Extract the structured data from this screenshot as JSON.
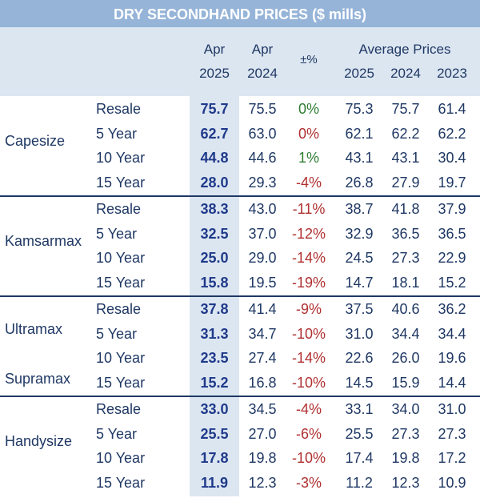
{
  "title": "DRY SECONDHAND PRICES ($ mills)",
  "headers": {
    "apr2025_top": "Apr",
    "apr2025_bottom": "2025",
    "apr2024_top": "Apr",
    "apr2024_bottom": "2024",
    "change": "±%",
    "average": "Average Prices",
    "avg2025": "2025",
    "avg2024": "2024",
    "avg2023": "2023"
  },
  "groups": [
    {
      "name": "Capesize",
      "rows": [
        {
          "label": "Resale",
          "apr2025": "75.7",
          "apr2024": "75.5",
          "change": "0%",
          "trend": "pos",
          "a2025": "75.3",
          "a2024": "75.7",
          "a2023": "61.4"
        },
        {
          "label": "5 Year",
          "apr2025": "62.7",
          "apr2024": "63.0",
          "change": "0%",
          "trend": "neg",
          "a2025": "62.1",
          "a2024": "62.2",
          "a2023": "62.2"
        },
        {
          "label": "10 Year",
          "apr2025": "44.8",
          "apr2024": "44.6",
          "change": "1%",
          "trend": "pos",
          "a2025": "43.1",
          "a2024": "43.1",
          "a2023": "30.4"
        },
        {
          "label": "15 Year",
          "apr2025": "28.0",
          "apr2024": "29.3",
          "change": "-4%",
          "trend": "neg",
          "a2025": "26.8",
          "a2024": "27.9",
          "a2023": "19.7"
        }
      ]
    },
    {
      "name": "Kamsarmax",
      "rows": [
        {
          "label": "Resale",
          "apr2025": "38.3",
          "apr2024": "43.0",
          "change": "-11%",
          "trend": "neg",
          "a2025": "38.7",
          "a2024": "41.8",
          "a2023": "37.9"
        },
        {
          "label": "5 Year",
          "apr2025": "32.5",
          "apr2024": "37.0",
          "change": "-12%",
          "trend": "neg",
          "a2025": "32.9",
          "a2024": "36.5",
          "a2023": "36.5"
        },
        {
          "label": "10 Year",
          "apr2025": "25.0",
          "apr2024": "29.0",
          "change": "-14%",
          "trend": "neg",
          "a2025": "24.5",
          "a2024": "27.3",
          "a2023": "22.9"
        },
        {
          "label": "15 Year",
          "apr2025": "15.8",
          "apr2024": "19.5",
          "change": "-19%",
          "trend": "neg",
          "a2025": "14.7",
          "a2024": "18.1",
          "a2023": "15.2"
        }
      ]
    },
    {
      "name": "Ultramax",
      "name2": "Supramax",
      "rows": [
        {
          "label": "Resale",
          "apr2025": "37.8",
          "apr2024": "41.4",
          "change": "-9%",
          "trend": "neg",
          "a2025": "37.5",
          "a2024": "40.6",
          "a2023": "36.2"
        },
        {
          "label": "5 Year",
          "apr2025": "31.3",
          "apr2024": "34.7",
          "change": "-10%",
          "trend": "neg",
          "a2025": "31.0",
          "a2024": "34.4",
          "a2023": "34.4"
        },
        {
          "label": "10 Year",
          "apr2025": "23.5",
          "apr2024": "27.4",
          "change": "-14%",
          "trend": "neg",
          "a2025": "22.6",
          "a2024": "26.0",
          "a2023": "19.6"
        },
        {
          "label": "15 Year",
          "apr2025": "15.2",
          "apr2024": "16.8",
          "change": "-10%",
          "trend": "neg",
          "a2025": "14.5",
          "a2024": "15.9",
          "a2023": "14.4"
        }
      ]
    },
    {
      "name": "Handysize",
      "rows": [
        {
          "label": "Resale",
          "apr2025": "33.0",
          "apr2024": "34.5",
          "change": "-4%",
          "trend": "neg",
          "a2025": "33.1",
          "a2024": "34.0",
          "a2023": "31.0"
        },
        {
          "label": "5 Year",
          "apr2025": "25.5",
          "apr2024": "27.0",
          "change": "-6%",
          "trend": "neg",
          "a2025": "25.5",
          "a2024": "27.3",
          "a2023": "27.3"
        },
        {
          "label": "10 Year",
          "apr2025": "17.8",
          "apr2024": "19.8",
          "change": "-10%",
          "trend": "neg",
          "a2025": "17.4",
          "a2024": "19.8",
          "a2023": "17.2"
        },
        {
          "label": "15 Year",
          "apr2025": "11.9",
          "apr2024": "12.3",
          "change": "-3%",
          "trend": "neg",
          "a2025": "11.2",
          "a2024": "12.3",
          "a2023": "10.9"
        }
      ]
    }
  ]
}
